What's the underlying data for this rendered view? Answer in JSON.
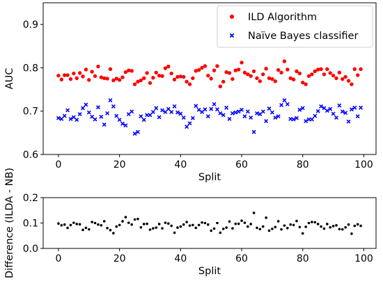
{
  "chart_data": [
    {
      "type": "scatter",
      "xlabel": "Split",
      "ylabel": "AUC",
      "xlim": [
        -5,
        104
      ],
      "ylim": [
        0.6,
        0.95
      ],
      "xticks": [
        0,
        20,
        40,
        60,
        80,
        100
      ],
      "yticks": [
        0.6,
        0.7,
        0.8,
        0.9
      ],
      "ytick_labels": [
        "0.6",
        "0.7",
        "0.8",
        "0.9"
      ],
      "grid": false,
      "legend_position": "top-right",
      "series": [
        {
          "name": "ILD Algorithm",
          "marker": "circle",
          "color": "#ff0000",
          "x": [
            0,
            1,
            2,
            3,
            4,
            5,
            6,
            7,
            8,
            9,
            10,
            11,
            12,
            13,
            14,
            15,
            16,
            17,
            18,
            19,
            20,
            21,
            22,
            23,
            24,
            25,
            26,
            27,
            28,
            29,
            30,
            31,
            32,
            33,
            34,
            35,
            36,
            37,
            38,
            39,
            40,
            41,
            42,
            43,
            44,
            45,
            46,
            47,
            48,
            49,
            50,
            51,
            52,
            53,
            54,
            55,
            56,
            57,
            58,
            59,
            60,
            61,
            62,
            63,
            64,
            65,
            66,
            67,
            68,
            69,
            70,
            71,
            72,
            73,
            74,
            75,
            76,
            77,
            78,
            79,
            80,
            81,
            82,
            83,
            84,
            85,
            86,
            87,
            88,
            89,
            90,
            91,
            92,
            93,
            94,
            95,
            96,
            97,
            98,
            99
          ],
          "y": [
            0.782,
            0.773,
            0.783,
            0.783,
            0.774,
            0.787,
            0.776,
            0.788,
            0.78,
            0.796,
            0.772,
            0.791,
            0.781,
            0.803,
            0.778,
            0.776,
            0.775,
            0.797,
            0.771,
            0.775,
            0.772,
            0.778,
            0.79,
            0.794,
            0.793,
            0.762,
            0.768,
            0.771,
            0.776,
            0.788,
            0.765,
            0.777,
            0.789,
            0.782,
            0.781,
            0.799,
            0.803,
            0.787,
            0.773,
            0.779,
            0.78,
            0.779,
            0.768,
            0.762,
            0.776,
            0.793,
            0.795,
            0.8,
            0.804,
            0.782,
            0.775,
            0.794,
            0.804,
            0.757,
            0.768,
            0.79,
            0.788,
            0.774,
            0.794,
            0.796,
            0.812,
            0.789,
            0.785,
            0.781,
            0.792,
            0.776,
            0.769,
            0.785,
            0.798,
            0.776,
            0.774,
            0.769,
            0.795,
            0.789,
            0.815,
            0.796,
            0.776,
            0.773,
            0.792,
            0.787,
            0.766,
            0.762,
            0.781,
            0.785,
            0.792,
            0.796,
            0.797,
            0.785,
            0.797,
            0.788,
            0.782,
            0.776,
            0.789,
            0.774,
            0.779,
            0.77,
            0.762,
            0.797,
            0.783,
            0.797
          ]
        },
        {
          "name": "Naïve Bayes classifier",
          "marker": "x",
          "color": "#0000ff",
          "x": [
            0,
            1,
            2,
            3,
            4,
            5,
            6,
            7,
            8,
            9,
            10,
            11,
            12,
            13,
            14,
            15,
            16,
            17,
            18,
            19,
            20,
            21,
            22,
            23,
            24,
            25,
            26,
            27,
            28,
            29,
            30,
            31,
            32,
            33,
            34,
            35,
            36,
            37,
            38,
            39,
            40,
            41,
            42,
            43,
            44,
            45,
            46,
            47,
            48,
            49,
            50,
            51,
            52,
            53,
            54,
            55,
            56,
            57,
            58,
            59,
            60,
            61,
            62,
            63,
            64,
            65,
            66,
            67,
            68,
            69,
            70,
            71,
            72,
            73,
            74,
            75,
            76,
            77,
            78,
            79,
            80,
            81,
            82,
            83,
            84,
            85,
            86,
            87,
            88,
            89,
            90,
            91,
            92,
            93,
            94,
            95,
            96,
            97,
            98,
            99
          ],
          "y": [
            0.684,
            0.682,
            0.689,
            0.702,
            0.682,
            0.686,
            0.68,
            0.693,
            0.707,
            0.715,
            0.697,
            0.687,
            0.681,
            0.709,
            0.687,
            0.669,
            0.695,
            0.725,
            0.711,
            0.689,
            0.68,
            0.671,
            0.667,
            0.693,
            0.699,
            0.648,
            0.652,
            0.688,
            0.68,
            0.691,
            0.691,
            0.698,
            0.707,
            0.686,
            0.702,
            0.698,
            0.705,
            0.698,
            0.711,
            0.697,
            0.694,
            0.685,
            0.664,
            0.672,
            0.684,
            0.712,
            0.703,
            0.698,
            0.704,
            0.688,
            0.705,
            0.716,
            0.704,
            0.695,
            0.691,
            0.708,
            0.682,
            0.695,
            0.697,
            0.699,
            0.703,
            0.688,
            0.699,
            0.685,
            0.652,
            0.695,
            0.693,
            0.699,
            0.677,
            0.706,
            0.697,
            0.685,
            0.688,
            0.714,
            0.725,
            0.716,
            0.682,
            0.681,
            0.684,
            0.703,
            0.707,
            0.677,
            0.681,
            0.681,
            0.689,
            0.7,
            0.711,
            0.707,
            0.701,
            0.705,
            0.694,
            0.685,
            0.713,
            0.699,
            0.696,
            0.676,
            0.704,
            0.708,
            0.688,
            0.708
          ]
        }
      ]
    },
    {
      "type": "scatter",
      "xlabel": "Split",
      "ylabel": "Difference (ILDA - NB)",
      "xlim": [
        -5,
        104
      ],
      "ylim": [
        0.0,
        0.2
      ],
      "xticks": [
        0,
        20,
        40,
        60,
        80,
        100
      ],
      "yticks": [
        0.0,
        0.1,
        0.2
      ],
      "ytick_labels": [
        "0.0",
        "0.1",
        "0.2"
      ],
      "grid": false,
      "series": [
        {
          "marker": "circle",
          "color": "#000000",
          "x": [
            0,
            1,
            2,
            3,
            4,
            5,
            6,
            7,
            8,
            9,
            10,
            11,
            12,
            13,
            14,
            15,
            16,
            17,
            18,
            19,
            20,
            21,
            22,
            23,
            24,
            25,
            26,
            27,
            28,
            29,
            30,
            31,
            32,
            33,
            34,
            35,
            36,
            37,
            38,
            39,
            40,
            41,
            42,
            43,
            44,
            45,
            46,
            47,
            48,
            49,
            50,
            51,
            52,
            53,
            54,
            55,
            56,
            57,
            58,
            59,
            60,
            61,
            62,
            63,
            64,
            65,
            66,
            67,
            68,
            69,
            70,
            71,
            72,
            73,
            74,
            75,
            76,
            77,
            78,
            79,
            80,
            81,
            82,
            83,
            84,
            85,
            86,
            87,
            88,
            89,
            90,
            91,
            92,
            93,
            94,
            95,
            96,
            97,
            98,
            99
          ],
          "y": [
            0.098,
            0.091,
            0.094,
            0.081,
            0.092,
            0.101,
            0.096,
            0.095,
            0.073,
            0.081,
            0.075,
            0.104,
            0.1,
            0.094,
            0.091,
            0.107,
            0.08,
            0.072,
            0.06,
            0.086,
            0.092,
            0.107,
            0.123,
            0.101,
            0.094,
            0.114,
            0.116,
            0.083,
            0.096,
            0.097,
            0.074,
            0.079,
            0.082,
            0.096,
            0.079,
            0.101,
            0.098,
            0.089,
            0.062,
            0.082,
            0.086,
            0.094,
            0.104,
            0.09,
            0.092,
            0.081,
            0.092,
            0.102,
            0.1,
            0.094,
            0.07,
            0.078,
            0.1,
            0.062,
            0.077,
            0.082,
            0.106,
            0.079,
            0.097,
            0.097,
            0.109,
            0.101,
            0.086,
            0.096,
            0.14,
            0.081,
            0.076,
            0.086,
            0.121,
            0.07,
            0.077,
            0.084,
            0.107,
            0.075,
            0.09,
            0.08,
            0.094,
            0.092,
            0.108,
            0.084,
            0.059,
            0.085,
            0.1,
            0.104,
            0.103,
            0.096,
            0.086,
            0.078,
            0.096,
            0.083,
            0.088,
            0.091,
            0.076,
            0.075,
            0.083,
            0.094,
            0.058,
            0.089,
            0.095,
            0.089
          ]
        }
      ]
    }
  ]
}
